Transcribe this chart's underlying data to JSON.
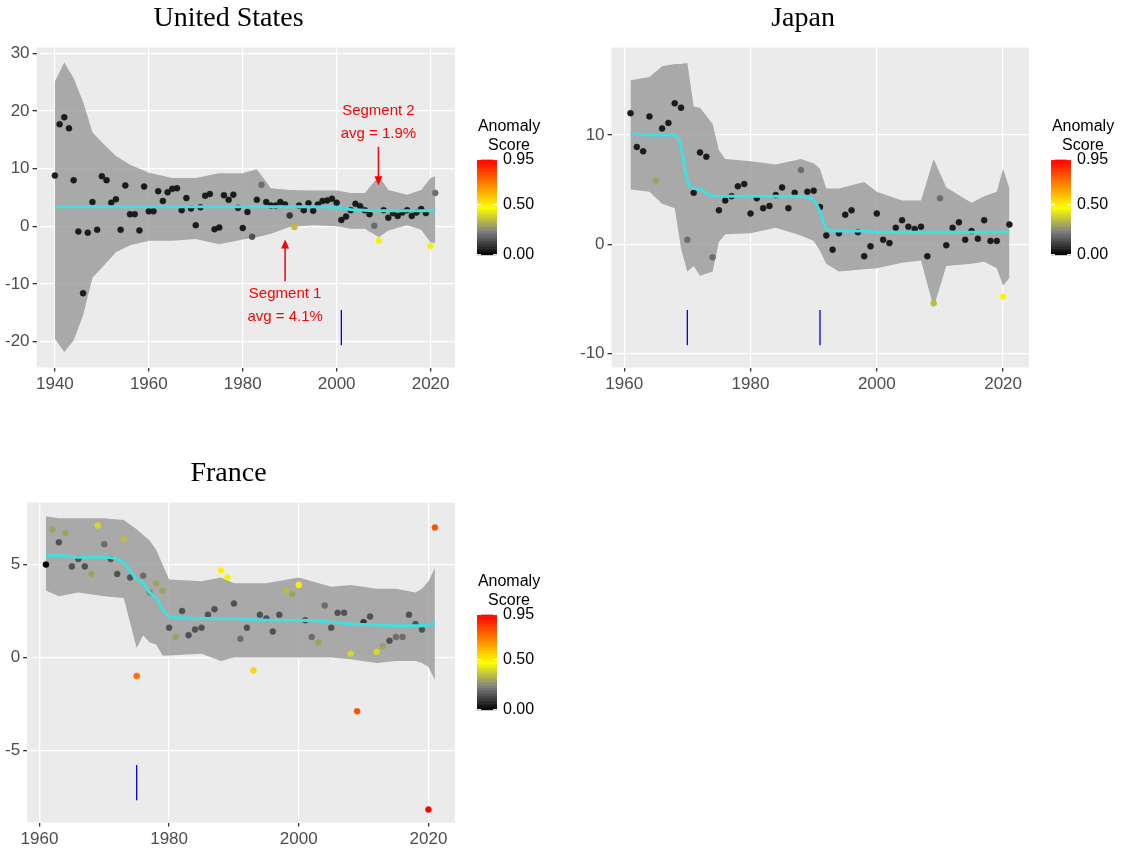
{
  "chart_data": [
    {
      "type": "scatter",
      "title": "United States",
      "xlim": [
        1936.1,
        2025.2
      ],
      "ylim": [
        -24.5,
        31
      ],
      "xticks": [
        1940,
        1960,
        1980,
        2000,
        2020
      ],
      "yticks": [
        -20,
        -10,
        0,
        10,
        20,
        30
      ],
      "grid": true,
      "clabel": "Anomaly Score",
      "clim": [
        0,
        0.95
      ],
      "cticks": [
        {
          "value": 0,
          "label": "0.00"
        },
        {
          "value": 0.5,
          "label": "0.50"
        },
        {
          "value": 0.95,
          "label": "0.95"
        }
      ],
      "series": [
        {
          "marker": "circle",
          "x": [
            1940,
            1941,
            1942,
            1943,
            1944,
            1945,
            1946,
            1947,
            1948,
            1949,
            1950,
            1951,
            1952,
            1953,
            1954,
            1955,
            1956,
            1957,
            1958,
            1959,
            1960,
            1961,
            1962,
            1963,
            1964,
            1965,
            1966,
            1967,
            1968,
            1969,
            1970,
            1971,
            1972,
            1973,
            1974,
            1975,
            1976,
            1977,
            1978,
            1979,
            1980,
            1981,
            1982,
            1983,
            1984,
            1985,
            1986,
            1987,
            1988,
            1989,
            1990,
            1991,
            1992,
            1993,
            1994,
            1995,
            1996,
            1997,
            1998,
            1999,
            2000,
            2001,
            2002,
            2003,
            2004,
            2005,
            2006,
            2007,
            2008,
            2009,
            2010,
            2011,
            2012,
            2013,
            2014,
            2015,
            2016,
            2017,
            2018,
            2019,
            2020,
            2021
          ],
          "values": [
            8.8,
            17.7,
            18.9,
            17.0,
            8.0,
            -0.9,
            -11.6,
            -1.1,
            4.2,
            -0.6,
            8.7,
            8.0,
            4.1,
            4.7,
            -0.6,
            7.1,
            2.1,
            2.1,
            -0.7,
            6.9,
            2.6,
            2.6,
            6.1,
            4.4,
            5.9,
            6.5,
            6.6,
            2.8,
            4.9,
            3.1,
            0.2,
            3.3,
            5.3,
            5.6,
            -0.5,
            -0.2,
            5.4,
            4.6,
            5.5,
            3.2,
            -0.3,
            2.5,
            -1.8,
            4.6,
            7.2,
            4.2,
            3.6,
            3.6,
            4.2,
            3.8,
            1.9,
            -0.1,
            3.6,
            2.8,
            4.0,
            2.7,
            3.8,
            4.4,
            4.5,
            4.8,
            4.1,
            1.1,
            1.7,
            2.8,
            3.9,
            3.5,
            2.8,
            2.1,
            0.1,
            -2.5,
            2.8,
            1.5,
            2.3,
            1.8,
            2.4,
            2.8,
            1.8,
            2.4,
            3.0,
            2.3,
            -3.4,
            5.8
          ],
          "colors": [
            "#1b1b1b",
            "#1b1b1b",
            "#1b1b1b",
            "#1b1b1b",
            "#1b1b1b",
            "#1b1b1b",
            "#1b1b1b",
            "#1b1b1b",
            "#1b1b1b",
            "#1b1b1b",
            "#1b1b1b",
            "#1b1b1b",
            "#1b1b1b",
            "#1b1b1b",
            "#1b1b1b",
            "#1b1b1b",
            "#1b1b1b",
            "#1b1b1b",
            "#1b1b1b",
            "#1b1b1b",
            "#1b1b1b",
            "#1b1b1b",
            "#1b1b1b",
            "#1b1b1b",
            "#1b1b1b",
            "#1b1b1b",
            "#1b1b1b",
            "#1b1b1b",
            "#1b1b1b",
            "#1b1b1b",
            "#1b1b1b",
            "#1b1b1b",
            "#1b1b1b",
            "#1b1b1b",
            "#1b1b1b",
            "#1b1b1b",
            "#1b1b1b",
            "#1b1b1b",
            "#1b1b1b",
            "#1b1b1b",
            "#1b1b1b",
            "#1b1b1b",
            "#515151",
            "#1b1b1b",
            "#6c6c6c",
            "#1b1b1b",
            "#1b1b1b",
            "#1b1b1b",
            "#1b1b1b",
            "#1b1b1b",
            "#363636",
            "#bcbc43",
            "#1b1b1b",
            "#1b1b1b",
            "#1b1b1b",
            "#1b1b1b",
            "#1b1b1b",
            "#1b1b1b",
            "#1b1b1b",
            "#1b1b1b",
            "#1b1b1b",
            "#1b1b1b",
            "#1b1b1b",
            "#1b1b1b",
            "#1b1b1b",
            "#1b1b1b",
            "#1b1b1b",
            "#1b1b1b",
            "#6c6c6c",
            "#f2f20d",
            "#1b1b1b",
            "#1b1b1b",
            "#1b1b1b",
            "#1b1b1b",
            "#1b1b1b",
            "#1b1b1b",
            "#1b1b1b",
            "#1b1b1b",
            "#1b1b1b",
            "#1b1b1b",
            "#f2f20d",
            "#6c6c6c"
          ],
          "cvalues": [
            0.05,
            0.05,
            0.05,
            0.05,
            0.05,
            0.05,
            0.05,
            0.05,
            0.05,
            0.05,
            0.05,
            0.05,
            0.05,
            0.05,
            0.05,
            0.05,
            0.05,
            0.05,
            0.05,
            0.05,
            0.05,
            0.05,
            0.05,
            0.05,
            0.05,
            0.05,
            0.05,
            0.05,
            0.05,
            0.05,
            0.05,
            0.05,
            0.05,
            0.05,
            0.05,
            0.05,
            0.05,
            0.05,
            0.05,
            0.05,
            0.05,
            0.05,
            0.15,
            0.05,
            0.2,
            0.05,
            0.05,
            0.05,
            0.05,
            0.05,
            0.1,
            0.35,
            0.05,
            0.05,
            0.05,
            0.05,
            0.05,
            0.05,
            0.05,
            0.05,
            0.05,
            0.05,
            0.05,
            0.05,
            0.05,
            0.05,
            0.05,
            0.05,
            0.2,
            0.45,
            0.05,
            0.05,
            0.05,
            0.05,
            0.05,
            0.05,
            0.05,
            0.05,
            0.05,
            0.05,
            0.45,
            0.2
          ]
        },
        {
          "type": "line",
          "marker": "none",
          "color": "#40e0e0",
          "x": [
            1940,
            1942,
            1944,
            1946,
            1948,
            1950,
            1953,
            1956,
            1960,
            1965,
            1970,
            1975,
            1980,
            1983,
            1986,
            1990,
            1995,
            2000,
            2003,
            2006,
            2009,
            2011,
            2015,
            2018,
            2020,
            2021
          ],
          "values": [
            3.4,
            3.4,
            3.4,
            3.4,
            3.4,
            3.4,
            3.4,
            3.4,
            3.4,
            3.4,
            3.4,
            3.4,
            3.4,
            3.4,
            3.4,
            3.4,
            3.4,
            3.3,
            2.9,
            2.8,
            2.7,
            2.7,
            2.7,
            2.7,
            2.7,
            2.7
          ],
          "lower": [
            -19.5,
            -21.8,
            -19.8,
            -15.4,
            -8.9,
            -7.2,
            -4.5,
            -3.3,
            -2.5,
            -2.5,
            -2.2,
            -3.1,
            -2.3,
            -1.9,
            -1.3,
            -0.1,
            0.2,
            0,
            -0.4,
            -0.4,
            -1.9,
            -0.7,
            0.2,
            -0.6,
            -2.8,
            -2.9
          ],
          "upper": [
            25.1,
            28.4,
            25.7,
            21.6,
            16.3,
            14.6,
            12.2,
            10.7,
            9.3,
            8.4,
            8.4,
            9.2,
            9.2,
            9.9,
            6.6,
            6.3,
            6.2,
            6.2,
            5.8,
            5.8,
            8.7,
            6.3,
            5.5,
            6.3,
            8.4,
            8.7
          ]
        }
      ],
      "ref_lines": [
        {
          "axis": "x",
          "value": 2001,
          "color": "#0000ff"
        }
      ],
      "annotations": [
        "Segment 1\navg = 4.1%",
        "Segment 2\navg = 1.9%"
      ]
    },
    {
      "type": "scatter",
      "title": "Japan",
      "xlim": [
        1958,
        2024.1
      ],
      "ylim": [
        -11.3,
        18
      ],
      "xticks": [
        1960,
        1980,
        2000,
        2020
      ],
      "yticks": [
        -10,
        0,
        10
      ],
      "grid": true,
      "clabel": "Anomaly Score",
      "clim": [
        0,
        0.95
      ],
      "cticks": [
        {
          "value": 0,
          "label": "0.00"
        },
        {
          "value": 0.5,
          "label": "0.50"
        },
        {
          "value": 0.95,
          "label": "0.95"
        }
      ],
      "series": [
        {
          "marker": "circle",
          "x": [
            1961,
            1962,
            1963,
            1964,
            1965,
            1966,
            1967,
            1968,
            1969,
            1970,
            1971,
            1972,
            1973,
            1974,
            1975,
            1976,
            1977,
            1978,
            1979,
            1980,
            1981,
            1982,
            1983,
            1984,
            1985,
            1986,
            1987,
            1988,
            1989,
            1990,
            1991,
            1992,
            1993,
            1994,
            1995,
            1996,
            1997,
            1998,
            1999,
            2000,
            2001,
            2002,
            2003,
            2004,
            2005,
            2006,
            2007,
            2008,
            2009,
            2010,
            2011,
            2012,
            2013,
            2014,
            2015,
            2016,
            2017,
            2018,
            2019,
            2020,
            2021
          ],
          "values": [
            12.0,
            8.9,
            8.5,
            11.7,
            5.8,
            10.6,
            11.1,
            12.9,
            12.5,
            0.4,
            4.7,
            8.4,
            8.0,
            -1.2,
            3.1,
            4.0,
            4.4,
            5.3,
            5.5,
            2.8,
            4.2,
            3.3,
            3.5,
            4.5,
            5.2,
            3.3,
            4.7,
            6.8,
            4.8,
            4.9,
            3.4,
            0.8,
            -0.5,
            1.0,
            2.7,
            3.1,
            1.1,
            -1.1,
            -0.2,
            2.8,
            0.4,
            0.1,
            1.5,
            2.2,
            1.6,
            1.4,
            1.6,
            -1.1,
            -5.4,
            4.2,
            -0.1,
            1.5,
            2.0,
            0.4,
            1.2,
            0.5,
            2.2,
            0.3,
            0.3,
            -4.8,
            1.8
          ],
          "colors": [
            "#1b1b1b",
            "#1b1b1b",
            "#1b1b1b",
            "#1b1b1b",
            "#a1a15e",
            "#1b1b1b",
            "#1b1b1b",
            "#1b1b1b",
            "#1b1b1b",
            "#6c6c6c",
            "#1b1b1b",
            "#1b1b1b",
            "#1b1b1b",
            "#6c6c6c",
            "#1b1b1b",
            "#1b1b1b",
            "#1b1b1b",
            "#1b1b1b",
            "#1b1b1b",
            "#1b1b1b",
            "#1b1b1b",
            "#1b1b1b",
            "#1b1b1b",
            "#1b1b1b",
            "#1b1b1b",
            "#1b1b1b",
            "#1b1b1b",
            "#6c6c6c",
            "#1b1b1b",
            "#1b1b1b",
            "#1b1b1b",
            "#1b1b1b",
            "#1b1b1b",
            "#1b1b1b",
            "#1b1b1b",
            "#1b1b1b",
            "#1b1b1b",
            "#1b1b1b",
            "#1b1b1b",
            "#1b1b1b",
            "#1b1b1b",
            "#1b1b1b",
            "#1b1b1b",
            "#1b1b1b",
            "#1b1b1b",
            "#1b1b1b",
            "#1b1b1b",
            "#1b1b1b",
            "#bcbc43",
            "#6c6c6c",
            "#1b1b1b",
            "#1b1b1b",
            "#1b1b1b",
            "#1b1b1b",
            "#1b1b1b",
            "#1b1b1b",
            "#1b1b1b",
            "#1b1b1b",
            "#1b1b1b",
            "#fff200",
            "#1b1b1b"
          ],
          "cvalues": [
            0.05,
            0.05,
            0.05,
            0.05,
            0.3,
            0.05,
            0.05,
            0.05,
            0.05,
            0.2,
            0.05,
            0.05,
            0.05,
            0.2,
            0.05,
            0.05,
            0.05,
            0.05,
            0.05,
            0.05,
            0.05,
            0.05,
            0.05,
            0.05,
            0.05,
            0.05,
            0.05,
            0.2,
            0.05,
            0.05,
            0.05,
            0.05,
            0.05,
            0.05,
            0.05,
            0.05,
            0.05,
            0.05,
            0.05,
            0.05,
            0.05,
            0.05,
            0.05,
            0.05,
            0.05,
            0.05,
            0.05,
            0.05,
            0.35,
            0.2,
            0.05,
            0.05,
            0.05,
            0.05,
            0.05,
            0.05,
            0.05,
            0.05,
            0.05,
            0.5,
            0.05
          ]
        },
        {
          "type": "line",
          "marker": "none",
          "color": "#40e0e0",
          "x": [
            1961,
            1964,
            1966,
            1968,
            1969,
            1970,
            1971,
            1972,
            1974,
            1975,
            1976,
            1980,
            1984,
            1988,
            1990,
            1991,
            1992,
            1994,
            1998,
            2000,
            2004,
            2007,
            2009,
            2011,
            2015,
            2017,
            2019,
            2020,
            2021
          ],
          "values": [
            10.1,
            10.0,
            10.0,
            10.0,
            8.9,
            5.8,
            5.1,
            5.0,
            4.4,
            4.4,
            4.4,
            4.4,
            4.4,
            4.4,
            4.0,
            3.0,
            1.4,
            1.2,
            1.2,
            1.1,
            1.1,
            1.1,
            1.1,
            1.1,
            1.1,
            1.1,
            1.1,
            1.1,
            1.1
          ],
          "lower": [
            5.0,
            4.8,
            3.7,
            3.3,
            -0.4,
            -2.5,
            -2.0,
            -2.9,
            -2.5,
            0.2,
            0.9,
            1.0,
            1.5,
            0.8,
            0.3,
            -0.6,
            -1.8,
            -2.5,
            -2.3,
            -2.2,
            -1.7,
            -1.5,
            -5.8,
            -2.0,
            -1.8,
            -1.6,
            -2.2,
            -3.8,
            -3.1
          ],
          "upper": [
            15.0,
            15.3,
            16.3,
            16.5,
            16.5,
            16.6,
            12.6,
            12.5,
            11.0,
            8.6,
            7.8,
            7.6,
            7.3,
            7.8,
            7.4,
            6.9,
            5.1,
            5.1,
            5.7,
            4.8,
            4.0,
            4.0,
            7.8,
            5.2,
            3.8,
            4.4,
            4.8,
            6.9,
            5.1
          ]
        }
      ],
      "ref_lines": [
        {
          "axis": "x",
          "value": 1970,
          "color": "#0000ff"
        },
        {
          "axis": "x",
          "value": 1991,
          "color": "#0000ff"
        }
      ]
    },
    {
      "type": "scatter",
      "title": "France",
      "xlim": [
        1958.1,
        2024.1
      ],
      "ylim": [
        -8.9,
        8.34
      ],
      "xticks": [
        1960,
        1980,
        2000,
        2020
      ],
      "yticks": [
        -5,
        0,
        5
      ],
      "grid": true,
      "clabel": "Anomaly Score",
      "clim": [
        0,
        0.95
      ],
      "cticks": [
        {
          "value": 0,
          "label": "0.00"
        },
        {
          "value": 0.5,
          "label": "0.50"
        },
        {
          "value": 0.95,
          "label": "0.95"
        }
      ],
      "series": [
        {
          "marker": "circle",
          "x": [
            1961,
            1962,
            1963,
            1964,
            1965,
            1966,
            1967,
            1968,
            1969,
            1970,
            1971,
            1972,
            1973,
            1974,
            1975,
            1976,
            1977,
            1978,
            1979,
            1980,
            1981,
            1982,
            1983,
            1984,
            1985,
            1986,
            1987,
            1988,
            1989,
            1990,
            1991,
            1992,
            1993,
            1994,
            1995,
            1996,
            1997,
            1998,
            1999,
            2000,
            2001,
            2002,
            2003,
            2004,
            2005,
            2006,
            2007,
            2008,
            2009,
            2010,
            2011,
            2012,
            2013,
            2014,
            2015,
            2016,
            2017,
            2018,
            2019,
            2020,
            2021
          ],
          "values": [
            5.0,
            6.9,
            6.2,
            6.7,
            4.9,
            5.3,
            4.9,
            4.5,
            7.1,
            6.1,
            5.3,
            4.5,
            6.4,
            4.3,
            -1.0,
            4.4,
            3.5,
            4.0,
            3.6,
            1.6,
            1.1,
            2.5,
            1.2,
            1.5,
            1.6,
            2.3,
            2.6,
            4.7,
            4.3,
            2.9,
            1.0,
            1.6,
            -0.7,
            2.3,
            2.1,
            1.4,
            2.3,
            3.6,
            3.4,
            3.9,
            2.0,
            1.1,
            0.8,
            2.8,
            1.6,
            2.4,
            2.4,
            0.2,
            -2.9,
            1.9,
            2.2,
            0.3,
            0.6,
            0.9,
            1.1,
            1.1,
            2.3,
            1.8,
            1.5,
            -8.2,
            7.0
          ],
          "colors": [
            "#000000",
            "#a1a15e",
            "#515151",
            "#a1a15e",
            "#515151",
            "#515151",
            "#515151",
            "#a1a15e",
            "#d7d728",
            "#6c6c6c",
            "#515151",
            "#515151",
            "#bcbc43",
            "#515151",
            "#ff6c00",
            "#6c6c6c",
            "#878779",
            "#a1a15e",
            "#a1a15e",
            "#515151",
            "#a1a15e",
            "#515151",
            "#515151",
            "#515151",
            "#515151",
            "#515151",
            "#515151",
            "#fff200",
            "#f2f20d",
            "#515151",
            "#6c6c6c",
            "#515151",
            "#ffd700",
            "#515151",
            "#515151",
            "#515151",
            "#515151",
            "#bcbc43",
            "#a1a15e",
            "#f2f20d",
            "#515151",
            "#6c6c6c",
            "#a1a15e",
            "#6c6c6c",
            "#515151",
            "#515151",
            "#515151",
            "#d7d728",
            "#ff5100",
            "#363636",
            "#515151",
            "#d7d728",
            "#a1a15e",
            "#515151",
            "#6c6c6c",
            "#6c6c6c",
            "#515151",
            "#515151",
            "#515151",
            "#ff0000",
            "#ff5100"
          ],
          "cvalues": [
            0.0,
            0.3,
            0.15,
            0.3,
            0.15,
            0.15,
            0.15,
            0.3,
            0.4,
            0.2,
            0.15,
            0.15,
            0.35,
            0.15,
            0.75,
            0.2,
            0.25,
            0.3,
            0.3,
            0.15,
            0.3,
            0.15,
            0.15,
            0.15,
            0.15,
            0.15,
            0.15,
            0.5,
            0.45,
            0.15,
            0.2,
            0.15,
            0.55,
            0.15,
            0.15,
            0.15,
            0.15,
            0.35,
            0.3,
            0.45,
            0.15,
            0.2,
            0.3,
            0.2,
            0.15,
            0.15,
            0.15,
            0.4,
            0.8,
            0.1,
            0.15,
            0.4,
            0.3,
            0.15,
            0.2,
            0.2,
            0.15,
            0.15,
            0.15,
            0.95,
            0.8
          ]
        },
        {
          "type": "line",
          "marker": "none",
          "color": "#40e0e0",
          "x": [
            1961,
            1963,
            1966,
            1970,
            1973,
            1975,
            1976,
            1977,
            1978,
            1979,
            1980,
            1985,
            1988,
            1990,
            1995,
            2000,
            2005,
            2008,
            2012,
            2015,
            2018,
            2019,
            2020,
            2021
          ],
          "values": [
            5.5,
            5.5,
            5.4,
            5.4,
            5.1,
            4.2,
            4.0,
            3.5,
            3.2,
            2.6,
            2.2,
            2.1,
            2.1,
            2.1,
            2.0,
            2.0,
            1.9,
            1.8,
            1.75,
            1.7,
            1.7,
            1.7,
            1.75,
            1.85
          ],
          "lower": [
            3.6,
            3.3,
            3.5,
            3.3,
            3.2,
            0.5,
            1.2,
            0.8,
            0.7,
            0.1,
            0.1,
            0.2,
            -0.2,
            0.0,
            0.0,
            0.0,
            0.0,
            -0.1,
            -0.3,
            -0.2,
            -0.2,
            -0.3,
            -0.5,
            -1.2
          ],
          "upper": [
            7.6,
            7.5,
            7.5,
            7.5,
            7.4,
            6.9,
            6.6,
            6.3,
            5.8,
            5.0,
            4.2,
            4.1,
            4.3,
            4.0,
            4.0,
            4.3,
            3.8,
            3.9,
            3.7,
            3.7,
            3.5,
            3.7,
            4.1,
            4.8
          ]
        }
      ],
      "ref_lines": [
        {
          "axis": "x",
          "value": 1975,
          "color": "#0000ff"
        }
      ]
    }
  ]
}
